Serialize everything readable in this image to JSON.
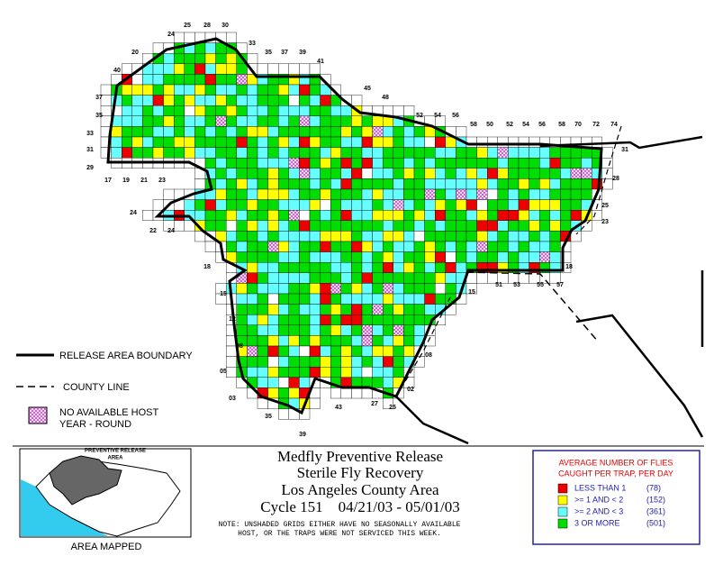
{
  "legend": {
    "boundary": "RELEASE AREA BOUNDARY",
    "county": "COUNTY LINE",
    "no_host": [
      "NO AVAILABLE HOST",
      "YEAR - ROUND"
    ]
  },
  "inset": {
    "label": [
      "PREVENTIVE RELEASE",
      "AREA"
    ],
    "caption": "AREA MAPPED"
  },
  "title": {
    "lines": [
      "Medfly Preventive Release",
      "Sterile Fly Recovery",
      "Los Angeles County Area",
      "Cycle 151    04/21/03 - 05/01/03"
    ],
    "note": [
      "NOTE: UNSHADED GRIDS EITHER HAVE NO SEASONALLY AVAILABLE",
      "HOST, OR THE TRAPS WERE NOT SERVICED THIS WEEK."
    ]
  },
  "key": {
    "title": [
      "AVERAGE NUMBER OF FLIES",
      "CAUGHT PER TRAP, PER DAY"
    ],
    "items": [
      {
        "label": "LESS THAN 1",
        "count": "(78)",
        "color": "#ee0000"
      },
      {
        "label": ">= 1 AND < 2",
        "count": "(152)",
        "color": "#ffff00"
      },
      {
        "label": ">= 2 AND < 3",
        "count": "(361)",
        "color": "#66ffff"
      },
      {
        "label": "3 OR MORE",
        "count": "(501)",
        "color": "#00dd00"
      }
    ]
  },
  "grid_labels": [
    "25",
    "28",
    "30",
    "24",
    "33",
    "35",
    "37",
    "39",
    "41",
    "20",
    "40",
    "45",
    "48",
    "37",
    "35",
    "33",
    "31",
    "29",
    "17",
    "19",
    "21",
    "23",
    "24",
    "22",
    "24",
    "52",
    "54",
    "56",
    "58",
    "50",
    "52",
    "54",
    "56",
    "58",
    "70",
    "72",
    "74",
    "31",
    "28",
    "25",
    "23",
    "18",
    "57",
    "55",
    "53",
    "51",
    "15",
    "18",
    "15",
    "12",
    "08",
    "05",
    "03",
    "02",
    "08",
    "27",
    "25",
    "43",
    "39",
    "35"
  ]
}
